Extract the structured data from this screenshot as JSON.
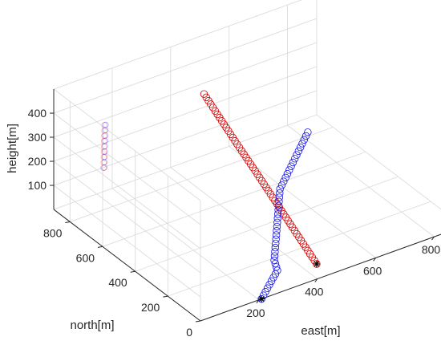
{
  "chart_data": {
    "type": "scatter",
    "title": "",
    "xlabel": "east[m]",
    "ylabel": "north[m]",
    "zlabel": "height[m]",
    "xlim": [
      0,
      900
    ],
    "ylim": [
      0,
      900
    ],
    "zlim": [
      0,
      500
    ],
    "x_ticks": [
      "200",
      "400",
      "600",
      "800"
    ],
    "y_ticks": [
      "0",
      "200",
      "400",
      "600",
      "800"
    ],
    "z_ticks": [
      "100",
      "200",
      "300",
      "400"
    ],
    "grid": true,
    "colors": {
      "red_series": "#d40000",
      "red_faint_series": "#ff4d4d",
      "blue_series": "#1a1ae6",
      "blue_faint_series": "#5050ff",
      "start_marker": "#000000"
    },
    "series": [
      {
        "marker": "circle",
        "color": "red",
        "points": [
          {
            "x": 444,
            "y": 83,
            "z": 0
          },
          {
            "x": 416,
            "y": 155,
            "z": 100
          },
          {
            "x": 388,
            "y": 225,
            "z": 200
          },
          {
            "x": 360,
            "y": 296,
            "z": 300
          },
          {
            "x": 331,
            "y": 368,
            "z": 400
          },
          {
            "x": 303,
            "y": 439,
            "z": 500
          },
          {
            "x": 284,
            "y": 487,
            "z": 568
          }
        ]
      },
      {
        "marker": "circle",
        "color": "blue",
        "points": [
          {
            "x": 209,
            "y": 0,
            "z": 0
          },
          {
            "x": 333,
            "y": 125,
            "z": 0
          },
          {
            "x": 357,
            "y": 187,
            "z": 0
          },
          {
            "x": 588,
            "y": 566,
            "z": 0
          },
          {
            "x": 826,
            "y": 822,
            "z": 0
          }
        ]
      },
      {
        "marker": "circle",
        "color": "red-faint",
        "points": [
          {
            "x": 77,
            "y": 733,
            "z": 225
          },
          {
            "x": 81,
            "y": 734,
            "z": 400
          }
        ]
      },
      {
        "marker": "circle",
        "color": "blue-faint",
        "points": [
          {
            "x": 80,
            "y": 733,
            "z": 225
          },
          {
            "x": 85,
            "y": 734,
            "z": 400
          }
        ]
      },
      {
        "marker": "asterisk",
        "color": "black",
        "points": [
          {
            "x": 209,
            "y": 0,
            "z": 0
          },
          {
            "x": 444,
            "y": 83,
            "z": 0
          }
        ]
      }
    ]
  }
}
